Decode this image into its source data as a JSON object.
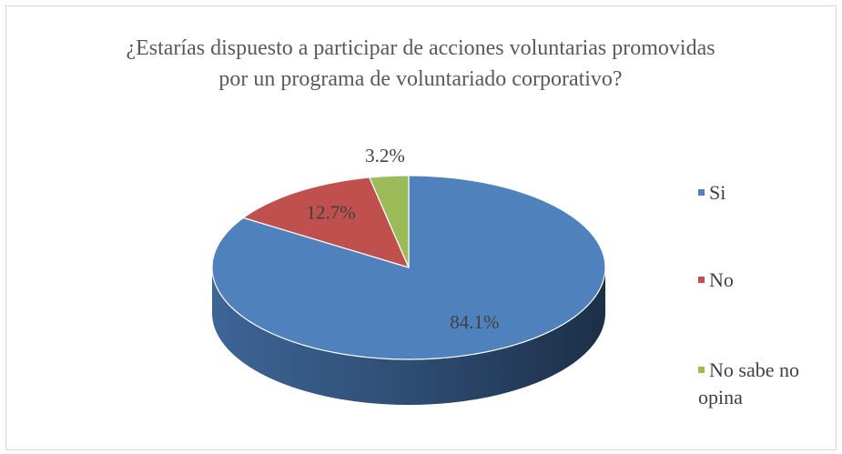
{
  "chart_data": {
    "type": "pie",
    "title": "¿Estarías dispuesto a participar de acciones voluntarias promovidas por un programa de voluntariado corporativo?",
    "categories": [
      "Si",
      "No",
      "No sabe no opina"
    ],
    "values": [
      84.1,
      12.7,
      3.2
    ],
    "value_labels": [
      "84.1%",
      "12.7%",
      "3.2%"
    ],
    "colors": [
      "#4f81bd",
      "#c0504d",
      "#9bbb59"
    ],
    "legend": "right"
  }
}
